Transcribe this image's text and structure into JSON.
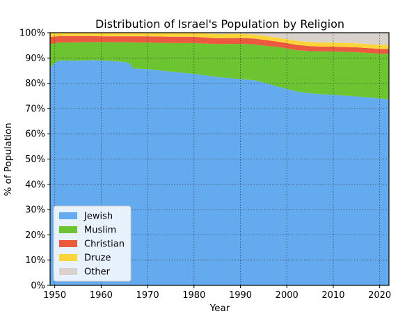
{
  "chart_data": {
    "type": "area",
    "stacked": true,
    "title": "Distribution of Israel's Population by Religion",
    "xlabel": "Year",
    "ylabel": "% of Population",
    "xlim": [
      1949,
      2022
    ],
    "ylim": [
      0,
      100
    ],
    "x_ticks": [
      1950,
      1960,
      1970,
      1980,
      1990,
      2000,
      2010,
      2020
    ],
    "y_ticks": [
      0,
      10,
      20,
      30,
      40,
      50,
      60,
      70,
      80,
      90,
      100
    ],
    "y_tick_format": "{v}%",
    "grid": true,
    "grid_style": "dotted",
    "legend_position": "lower-left",
    "x": [
      1949,
      1950,
      1951,
      1955,
      1958,
      1960,
      1963,
      1965,
      1966,
      1967,
      1970,
      1975,
      1980,
      1985,
      1990,
      1993,
      1995,
      1998,
      2000,
      2002,
      2005,
      2008,
      2010,
      2015,
      2020,
      2022
    ],
    "series": [
      {
        "name": "Jewish",
        "color": "#63aaee",
        "values": [
          86.4,
          88.0,
          89.0,
          88.9,
          89.2,
          89.0,
          88.7,
          88.4,
          88.0,
          85.8,
          85.6,
          84.6,
          83.7,
          82.5,
          81.6,
          81.2,
          80.3,
          78.7,
          77.8,
          76.8,
          76.0,
          75.6,
          75.4,
          74.8,
          74.0,
          73.6
        ]
      },
      {
        "name": "Muslim",
        "color": "#6cc430",
        "values": [
          9.1,
          7.8,
          7.1,
          7.3,
          7.1,
          7.3,
          7.5,
          7.8,
          8.2,
          10.3,
          10.5,
          11.3,
          12.2,
          13.0,
          14.0,
          14.2,
          14.6,
          15.7,
          16.0,
          16.3,
          16.7,
          17.0,
          17.2,
          17.5,
          17.7,
          18.1
        ]
      },
      {
        "name": "Christian",
        "color": "#eb5a3f",
        "values": [
          2.9,
          2.7,
          2.6,
          2.5,
          2.4,
          2.3,
          2.4,
          2.4,
          2.4,
          2.5,
          2.5,
          2.5,
          2.5,
          2.3,
          2.3,
          2.3,
          2.3,
          2.1,
          2.1,
          2.1,
          2.0,
          1.9,
          1.9,
          1.9,
          1.9,
          1.9
        ]
      },
      {
        "name": "Druze",
        "color": "#fcd53a",
        "values": [
          1.6,
          1.5,
          1.3,
          1.3,
          1.3,
          1.4,
          1.4,
          1.4,
          1.4,
          1.4,
          1.4,
          1.6,
          1.6,
          1.7,
          1.7,
          1.6,
          1.6,
          1.6,
          1.6,
          1.6,
          1.6,
          1.6,
          1.6,
          1.6,
          1.6,
          1.6
        ]
      },
      {
        "name": "Other",
        "color": "#d8d1cc",
        "values": [
          0.0,
          0.0,
          0.0,
          0.0,
          0.0,
          0.0,
          0.0,
          0.0,
          0.0,
          0.0,
          0.0,
          0.0,
          0.0,
          0.5,
          0.4,
          0.7,
          1.2,
          1.9,
          2.5,
          3.2,
          3.7,
          3.9,
          3.9,
          4.2,
          4.8,
          4.8
        ]
      }
    ]
  }
}
